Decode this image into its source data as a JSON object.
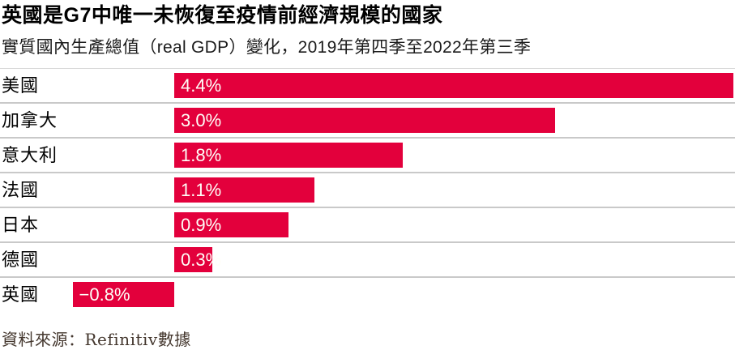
{
  "title": "英國是G7中唯一未恢復至疫情前經濟規模的國家",
  "subtitle": "實質國內生產總值（real GDP）變化，2019年第四季至2022年第三季",
  "source": "資料來源：Refinitiv數據",
  "colors": {
    "bar": "#e3003c",
    "divider": "#c9c9c9",
    "value_text": "#fffef8",
    "title_text": "#000000",
    "source_text": "#44372e"
  },
  "chart_data": {
    "type": "bar",
    "orientation": "horizontal",
    "title": "英國是G7中唯一未恢復至疫情前經濟規模的國家",
    "subtitle": "實質國內生產總值（real GDP）變化，2019年第四季至2022年第三季",
    "categories": [
      "美國",
      "加拿大",
      "意大利",
      "法國",
      "日本",
      "德國",
      "英國"
    ],
    "values": [
      4.4,
      3.0,
      1.8,
      1.1,
      0.9,
      0.3,
      -0.8
    ],
    "value_labels": [
      "4.4%",
      "3.0%",
      "1.8%",
      "1.1%",
      "0.9%",
      "0.3%",
      "−0.8%"
    ],
    "xlim": [
      -0.9,
      4.4
    ],
    "grid": false,
    "legend": false,
    "bar_color": "#e3003c",
    "value_label_position": "inside-start"
  }
}
